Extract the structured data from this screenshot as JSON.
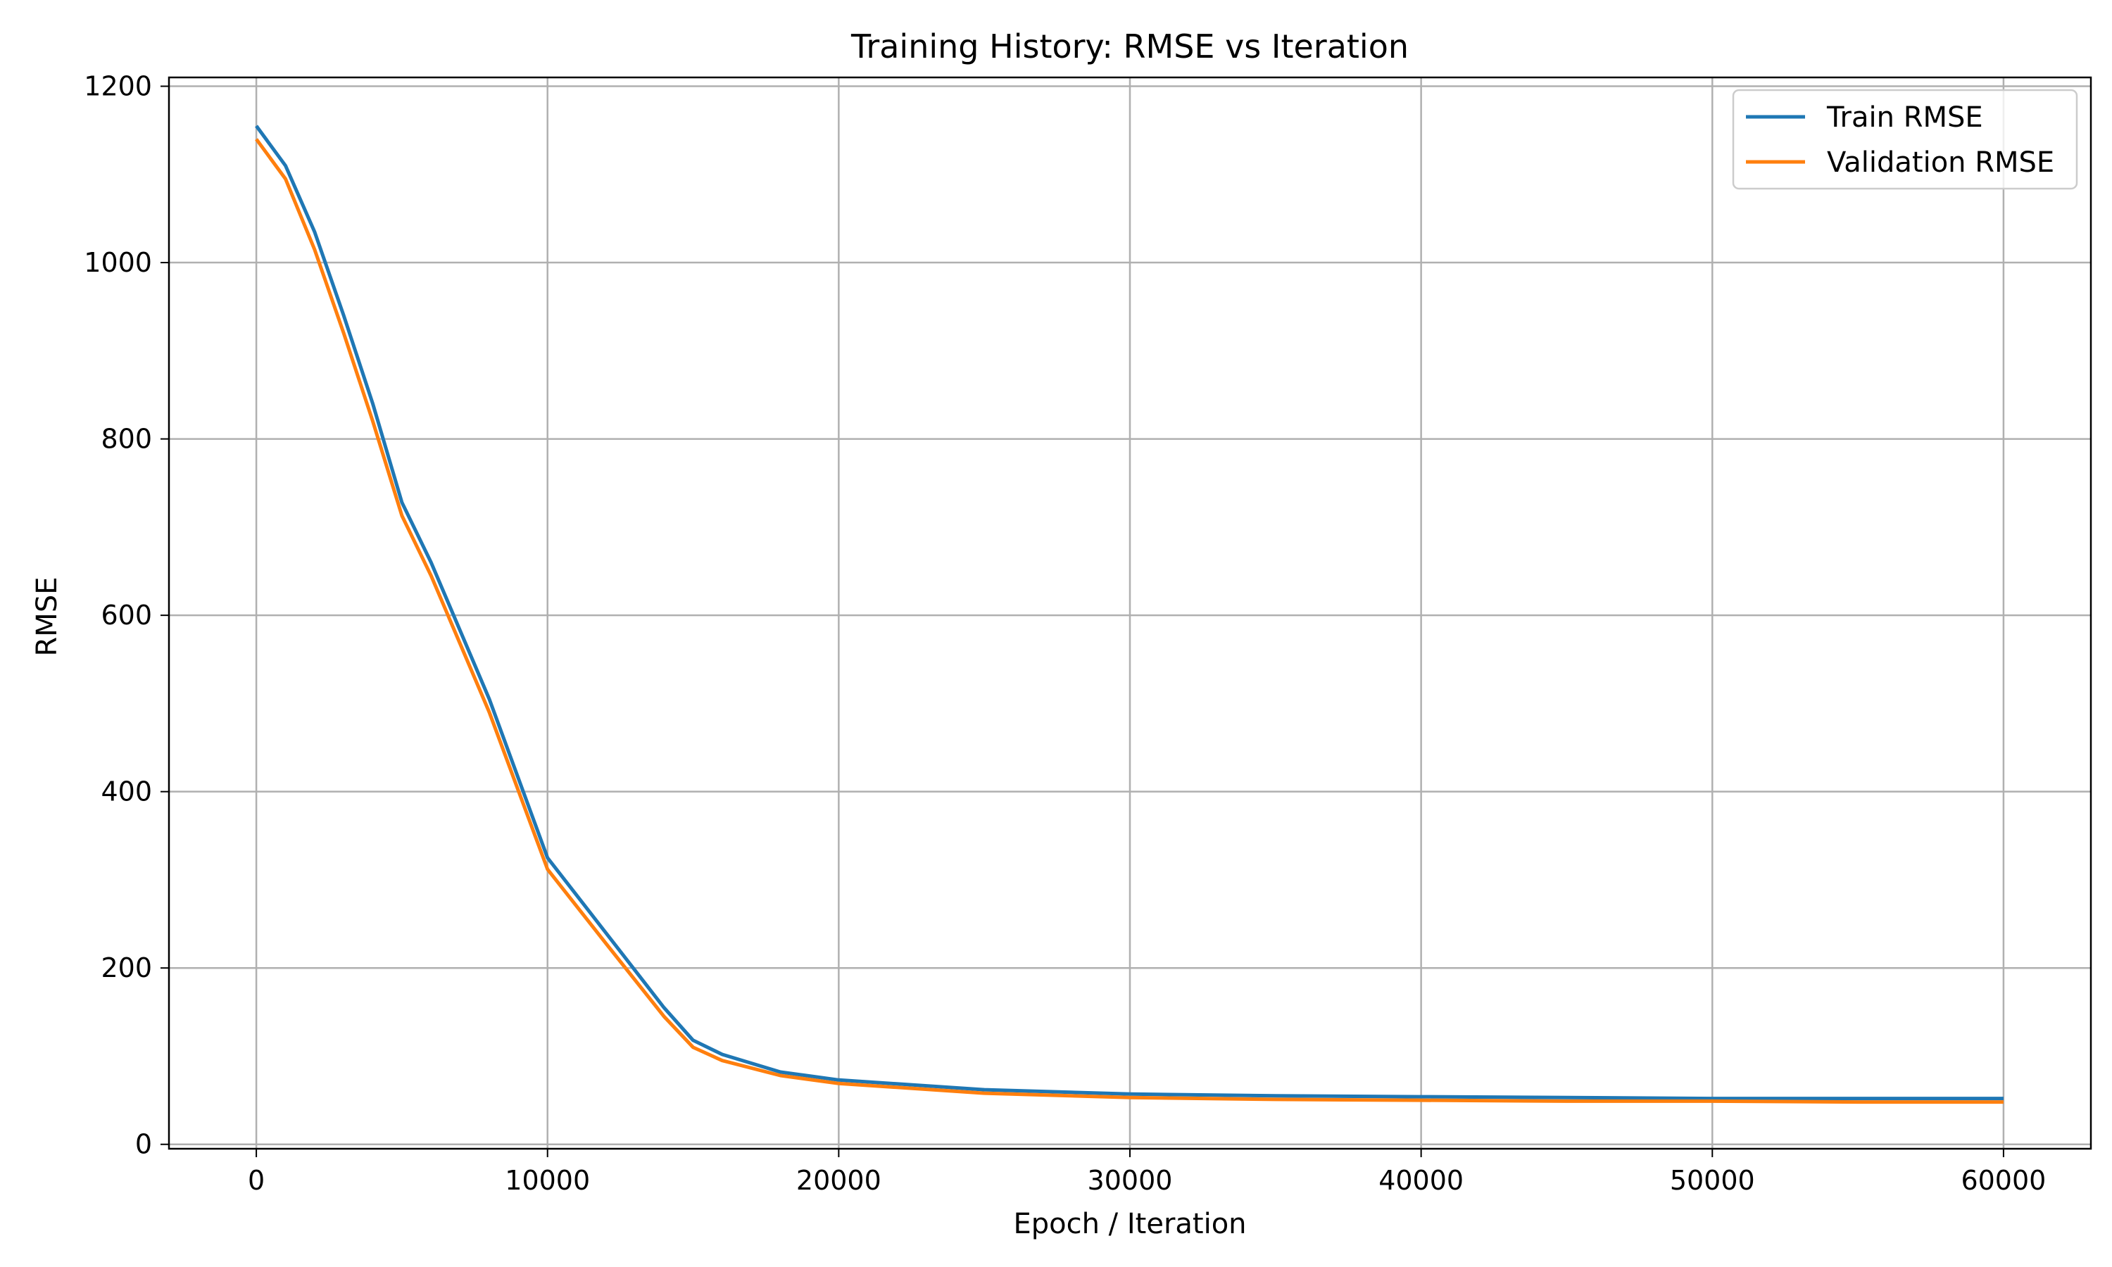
{
  "chart_data": {
    "type": "line",
    "title": "Training History: RMSE vs Iteration",
    "xlabel": "Epoch / Iteration",
    "ylabel": "RMSE",
    "xlim": [
      -3000,
      63000
    ],
    "ylim": [
      -5,
      1210
    ],
    "xticks": [
      0,
      10000,
      20000,
      30000,
      40000,
      50000,
      60000
    ],
    "yticks": [
      0,
      200,
      400,
      600,
      800,
      1000,
      1200
    ],
    "grid": true,
    "legend_position": "top-right",
    "x": [
      0,
      1000,
      2000,
      3000,
      4000,
      5000,
      6000,
      8000,
      10000,
      12000,
      14000,
      15000,
      16000,
      18000,
      20000,
      25000,
      30000,
      35000,
      40000,
      45000,
      50000,
      55000,
      60000
    ],
    "series": [
      {
        "name": "Train RMSE",
        "color": "#1f77b4",
        "values": [
          1155,
          1110,
          1035,
          940,
          840,
          728,
          660,
          505,
          325,
          240,
          155,
          118,
          102,
          82,
          73,
          62,
          57,
          55,
          54,
          53,
          52,
          52,
          52
        ]
      },
      {
        "name": "Validation RMSE",
        "color": "#ff7f0e",
        "values": [
          1140,
          1095,
          1015,
          920,
          820,
          713,
          645,
          490,
          312,
          228,
          145,
          110,
          95,
          78,
          69,
          58,
          53,
          51,
          50,
          49,
          49,
          48,
          48
        ]
      }
    ]
  }
}
